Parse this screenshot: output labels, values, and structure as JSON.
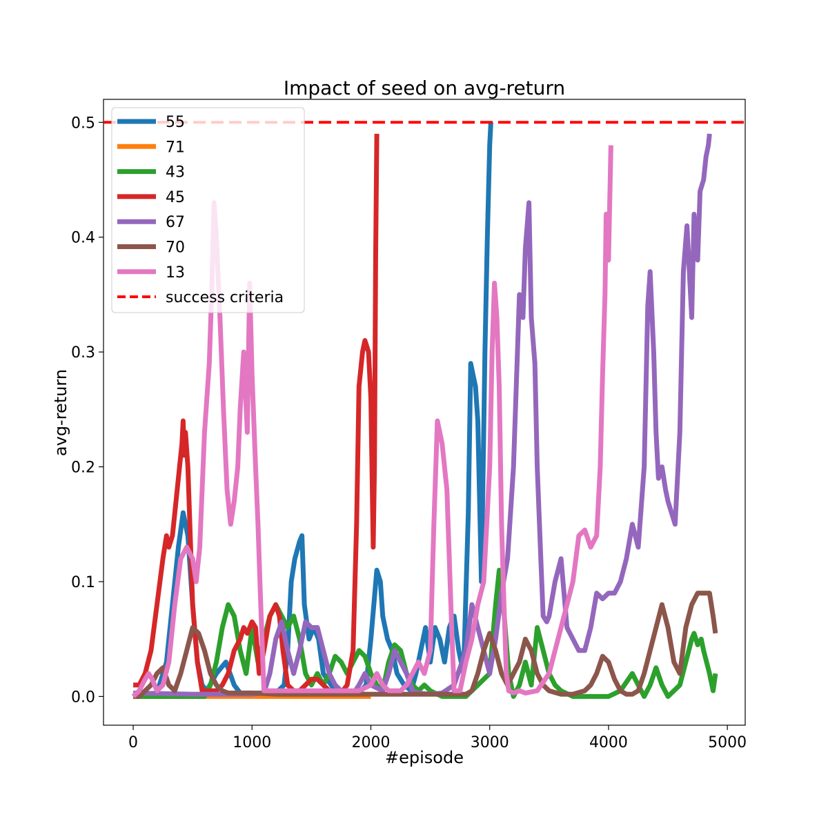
{
  "chart_data": {
    "type": "line",
    "title": "Impact of seed on avg-return",
    "xlabel": "#episode",
    "ylabel": "avg-return",
    "xlim": [
      -250,
      5150
    ],
    "ylim": [
      -0.025,
      0.52
    ],
    "xticks": [
      0,
      1000,
      2000,
      3000,
      4000,
      5000
    ],
    "xtick_labels": [
      "0",
      "1000",
      "2000",
      "3000",
      "4000",
      "5000"
    ],
    "yticks": [
      0.0,
      0.1,
      0.2,
      0.3,
      0.4,
      0.5
    ],
    "ytick_labels": [
      "0.0",
      "0.1",
      "0.2",
      "0.3",
      "0.4",
      "0.5"
    ],
    "grid": false,
    "legend_position": "top-left",
    "success_criteria": {
      "label": "success criteria",
      "value": 0.5,
      "color": "#ff0000",
      "style": "dashed"
    },
    "series": [
      {
        "name": "55",
        "color": "#1f77b4",
        "x": [
          0,
          100,
          200,
          280,
          330,
          380,
          420,
          460,
          500,
          540,
          580,
          620,
          700,
          780,
          850,
          900,
          1000,
          1100,
          1200,
          1270,
          1300,
          1330,
          1360,
          1400,
          1420,
          1440,
          1480,
          1520,
          1560,
          1600,
          1700,
          1800,
          1900,
          1960,
          2000,
          2050,
          2080,
          2100,
          2140,
          2180,
          2220,
          2280,
          2340,
          2380,
          2420,
          2460,
          2500,
          2540,
          2580,
          2620,
          2660,
          2700,
          2740,
          2780,
          2820,
          2840,
          2860,
          2880,
          2900,
          2930,
          2960,
          2980,
          3000,
          3010
        ],
        "y": [
          0.0,
          0.002,
          0.003,
          0.03,
          0.08,
          0.13,
          0.16,
          0.14,
          0.08,
          0.03,
          0.01,
          0.005,
          0.02,
          0.03,
          0.01,
          0.003,
          0.003,
          0.003,
          0.003,
          0.01,
          0.04,
          0.1,
          0.12,
          0.135,
          0.14,
          0.08,
          0.05,
          0.06,
          0.05,
          0.02,
          0.005,
          0.003,
          0.003,
          0.01,
          0.05,
          0.11,
          0.1,
          0.07,
          0.05,
          0.04,
          0.02,
          0.01,
          0.005,
          0.02,
          0.04,
          0.06,
          0.03,
          0.06,
          0.05,
          0.03,
          0.06,
          0.07,
          0.04,
          0.02,
          0.16,
          0.29,
          0.28,
          0.27,
          0.24,
          0.1,
          0.3,
          0.4,
          0.48,
          0.5
        ]
      },
      {
        "name": "71",
        "color": "#ff7f0e",
        "x": [
          0,
          500,
          1000,
          1500,
          2000
        ],
        "y": [
          0.0,
          0.0,
          0.0,
          0.0,
          0.0
        ]
      },
      {
        "name": "43",
        "color": "#2ca02c",
        "x": [
          0,
          600,
          650,
          700,
          750,
          800,
          850,
          900,
          950,
          1000,
          1050,
          1100,
          1150,
          1200,
          1250,
          1300,
          1350,
          1400,
          1450,
          1500,
          1550,
          1600,
          1650,
          1700,
          1750,
          1800,
          1850,
          1900,
          1950,
          2000,
          2050,
          2100,
          2150,
          2200,
          2250,
          2300,
          2350,
          2400,
          2450,
          2500,
          2600,
          2700,
          2800,
          2900,
          3000,
          3050,
          3080,
          3100,
          3130,
          3160,
          3200,
          3250,
          3300,
          3350,
          3400,
          3450,
          3500,
          3550,
          3600,
          3700,
          3800,
          3900,
          4000,
          4100,
          4200,
          4250,
          4300,
          4350,
          4400,
          4450,
          4500,
          4550,
          4600,
          4650,
          4700,
          4720,
          4750,
          4780,
          4800,
          4850,
          4880,
          4900
        ],
        "y": [
          0.0,
          0.0,
          0.01,
          0.03,
          0.06,
          0.08,
          0.07,
          0.04,
          0.02,
          0.06,
          0.03,
          0.05,
          0.07,
          0.08,
          0.07,
          0.06,
          0.07,
          0.05,
          0.02,
          0.01,
          0.02,
          0.01,
          0.02,
          0.035,
          0.03,
          0.02,
          0.03,
          0.04,
          0.035,
          0.02,
          0.01,
          0.005,
          0.03,
          0.045,
          0.04,
          0.02,
          0.01,
          0.005,
          0.01,
          0.005,
          0.0,
          0.0,
          0.0,
          0.01,
          0.02,
          0.08,
          0.11,
          0.1,
          0.06,
          0.02,
          0.0,
          0.01,
          0.03,
          0.01,
          0.06,
          0.04,
          0.02,
          0.01,
          0.005,
          0.0,
          0.0,
          0.0,
          0.0,
          0.005,
          0.02,
          0.01,
          0.0,
          0.01,
          0.025,
          0.01,
          0.0,
          0.005,
          0.01,
          0.03,
          0.05,
          0.055,
          0.045,
          0.05,
          0.04,
          0.02,
          0.005,
          0.02
        ]
      },
      {
        "name": "45",
        "color": "#d62728",
        "x": [
          0,
          50,
          100,
          150,
          200,
          250,
          280,
          300,
          330,
          360,
          390,
          410,
          420,
          430,
          440,
          460,
          480,
          500,
          540,
          580,
          620,
          660,
          700,
          750,
          800,
          850,
          900,
          930,
          960,
          1000,
          1030,
          1060,
          1100,
          1150,
          1200,
          1230,
          1260,
          1300,
          1350,
          1400,
          1450,
          1500,
          1550,
          1600,
          1650,
          1700,
          1750,
          1800,
          1850,
          1880,
          1900,
          1930,
          1950,
          1980,
          2000,
          2020,
          2030,
          2040,
          2050
        ],
        "y": [
          0.01,
          0.01,
          0.02,
          0.04,
          0.08,
          0.12,
          0.14,
          0.13,
          0.14,
          0.17,
          0.2,
          0.22,
          0.24,
          0.21,
          0.23,
          0.2,
          0.14,
          0.08,
          0.03,
          0.005,
          0.005,
          0.005,
          0.005,
          0.01,
          0.02,
          0.04,
          0.05,
          0.06,
          0.055,
          0.065,
          0.06,
          0.02,
          0.04,
          0.07,
          0.08,
          0.07,
          0.04,
          0.01,
          0.005,
          0.005,
          0.01,
          0.015,
          0.015,
          0.01,
          0.005,
          0.003,
          0.003,
          0.01,
          0.04,
          0.15,
          0.27,
          0.3,
          0.31,
          0.3,
          0.26,
          0.13,
          0.2,
          0.38,
          0.49
        ]
      },
      {
        "name": "67",
        "color": "#9467bd",
        "x": [
          0,
          500,
          1000,
          1100,
          1150,
          1200,
          1250,
          1300,
          1350,
          1400,
          1450,
          1500,
          1550,
          1600,
          1650,
          1700,
          1750,
          1800,
          1850,
          1900,
          1950,
          2000,
          2100,
          2150,
          2200,
          2250,
          2300,
          2350,
          2400,
          2500,
          2600,
          2700,
          2800,
          2850,
          2900,
          2950,
          3000,
          3050,
          3100,
          3150,
          3200,
          3250,
          3280,
          3300,
          3330,
          3350,
          3380,
          3400,
          3430,
          3450,
          3480,
          3500,
          3550,
          3600,
          3650,
          3700,
          3750,
          3800,
          3850,
          3900,
          3950,
          4000,
          4050,
          4100,
          4150,
          4200,
          4250,
          4300,
          4330,
          4350,
          4380,
          4400,
          4420,
          4450,
          4480,
          4500,
          4530,
          4560,
          4600,
          4630,
          4660,
          4700,
          4720,
          4750,
          4770,
          4800,
          4820,
          4840,
          4850
        ],
        "y": [
          0.003,
          0.002,
          0.002,
          0.003,
          0.02,
          0.05,
          0.065,
          0.04,
          0.02,
          0.04,
          0.065,
          0.06,
          0.06,
          0.04,
          0.02,
          0.01,
          0.005,
          0.003,
          0.002,
          0.01,
          0.02,
          0.01,
          0.005,
          0.02,
          0.04,
          0.03,
          0.02,
          0.005,
          0.003,
          0.002,
          0.003,
          0.01,
          0.04,
          0.08,
          0.06,
          0.04,
          0.02,
          0.05,
          0.09,
          0.12,
          0.2,
          0.35,
          0.33,
          0.39,
          0.43,
          0.33,
          0.29,
          0.2,
          0.12,
          0.07,
          0.065,
          0.07,
          0.1,
          0.12,
          0.06,
          0.05,
          0.04,
          0.04,
          0.06,
          0.09,
          0.085,
          0.09,
          0.09,
          0.1,
          0.12,
          0.15,
          0.13,
          0.2,
          0.34,
          0.37,
          0.3,
          0.23,
          0.19,
          0.2,
          0.18,
          0.17,
          0.16,
          0.15,
          0.23,
          0.37,
          0.41,
          0.33,
          0.42,
          0.38,
          0.44,
          0.45,
          0.47,
          0.48,
          0.49
        ]
      },
      {
        "name": "70",
        "color": "#8c564b",
        "x": [
          0,
          50,
          100,
          150,
          200,
          250,
          300,
          350,
          400,
          450,
          500,
          550,
          600,
          650,
          700,
          750,
          800,
          850,
          900,
          1000,
          1200,
          1400,
          1600,
          1800,
          2000,
          2200,
          2400,
          2600,
          2800,
          2850,
          2900,
          2950,
          3000,
          3050,
          3100,
          3150,
          3200,
          3250,
          3300,
          3350,
          3400,
          3450,
          3500,
          3600,
          3700,
          3800,
          3850,
          3900,
          3950,
          4000,
          4050,
          4100,
          4150,
          4200,
          4250,
          4300,
          4350,
          4400,
          4450,
          4500,
          4550,
          4600,
          4650,
          4700,
          4750,
          4800,
          4850,
          4880,
          4900
        ],
        "y": [
          0.0,
          0.0,
          0.005,
          0.01,
          0.02,
          0.025,
          0.01,
          0.005,
          0.02,
          0.04,
          0.06,
          0.055,
          0.04,
          0.02,
          0.01,
          0.005,
          0.003,
          0.003,
          0.003,
          0.003,
          0.002,
          0.002,
          0.002,
          0.002,
          0.002,
          0.002,
          0.002,
          0.002,
          0.002,
          0.005,
          0.02,
          0.04,
          0.055,
          0.04,
          0.02,
          0.01,
          0.02,
          0.03,
          0.05,
          0.04,
          0.02,
          0.01,
          0.005,
          0.002,
          0.002,
          0.005,
          0.01,
          0.02,
          0.035,
          0.03,
          0.015,
          0.005,
          0.002,
          0.002,
          0.005,
          0.02,
          0.04,
          0.06,
          0.08,
          0.06,
          0.03,
          0.02,
          0.06,
          0.08,
          0.09,
          0.09,
          0.09,
          0.07,
          0.055
        ]
      },
      {
        "name": "13",
        "color": "#e377c2",
        "x": [
          0,
          50,
          100,
          130,
          160,
          200,
          250,
          300,
          350,
          400,
          450,
          500,
          530,
          560,
          600,
          640,
          660,
          680,
          700,
          730,
          760,
          790,
          820,
          850,
          880,
          900,
          930,
          960,
          980,
          1000,
          1030,
          1050,
          1070,
          1100,
          1200,
          1300,
          1400,
          1500,
          1600,
          1700,
          1800,
          1900,
          2000,
          2050,
          2100,
          2150,
          2200,
          2250,
          2300,
          2350,
          2400,
          2450,
          2500,
          2530,
          2560,
          2600,
          2640,
          2680,
          2700,
          2750,
          2800,
          2850,
          2900,
          2950,
          3000,
          3020,
          3040,
          3060,
          3080,
          3100,
          3120,
          3140,
          3160,
          3200,
          3250,
          3300,
          3400,
          3500,
          3550,
          3600,
          3650,
          3700,
          3750,
          3800,
          3850,
          3900,
          3930,
          3950,
          3970,
          3980,
          4000,
          4020
        ],
        "y": [
          0.0,
          0.005,
          0.015,
          0.02,
          0.015,
          0.005,
          0.01,
          0.03,
          0.08,
          0.12,
          0.13,
          0.12,
          0.1,
          0.13,
          0.23,
          0.29,
          0.35,
          0.43,
          0.4,
          0.33,
          0.25,
          0.18,
          0.15,
          0.17,
          0.2,
          0.25,
          0.3,
          0.23,
          0.36,
          0.28,
          0.2,
          0.15,
          0.09,
          0.005,
          0.005,
          0.005,
          0.005,
          0.005,
          0.005,
          0.005,
          0.005,
          0.005,
          0.01,
          0.02,
          0.01,
          0.005,
          0.005,
          0.005,
          0.01,
          0.02,
          0.03,
          0.02,
          0.04,
          0.15,
          0.24,
          0.22,
          0.18,
          0.06,
          0.005,
          0.005,
          0.03,
          0.05,
          0.08,
          0.1,
          0.2,
          0.3,
          0.36,
          0.33,
          0.27,
          0.15,
          0.08,
          0.02,
          0.005,
          0.003,
          0.005,
          0.003,
          0.005,
          0.02,
          0.04,
          0.06,
          0.08,
          0.1,
          0.14,
          0.145,
          0.13,
          0.14,
          0.2,
          0.28,
          0.35,
          0.42,
          0.38,
          0.48
        ]
      }
    ]
  }
}
